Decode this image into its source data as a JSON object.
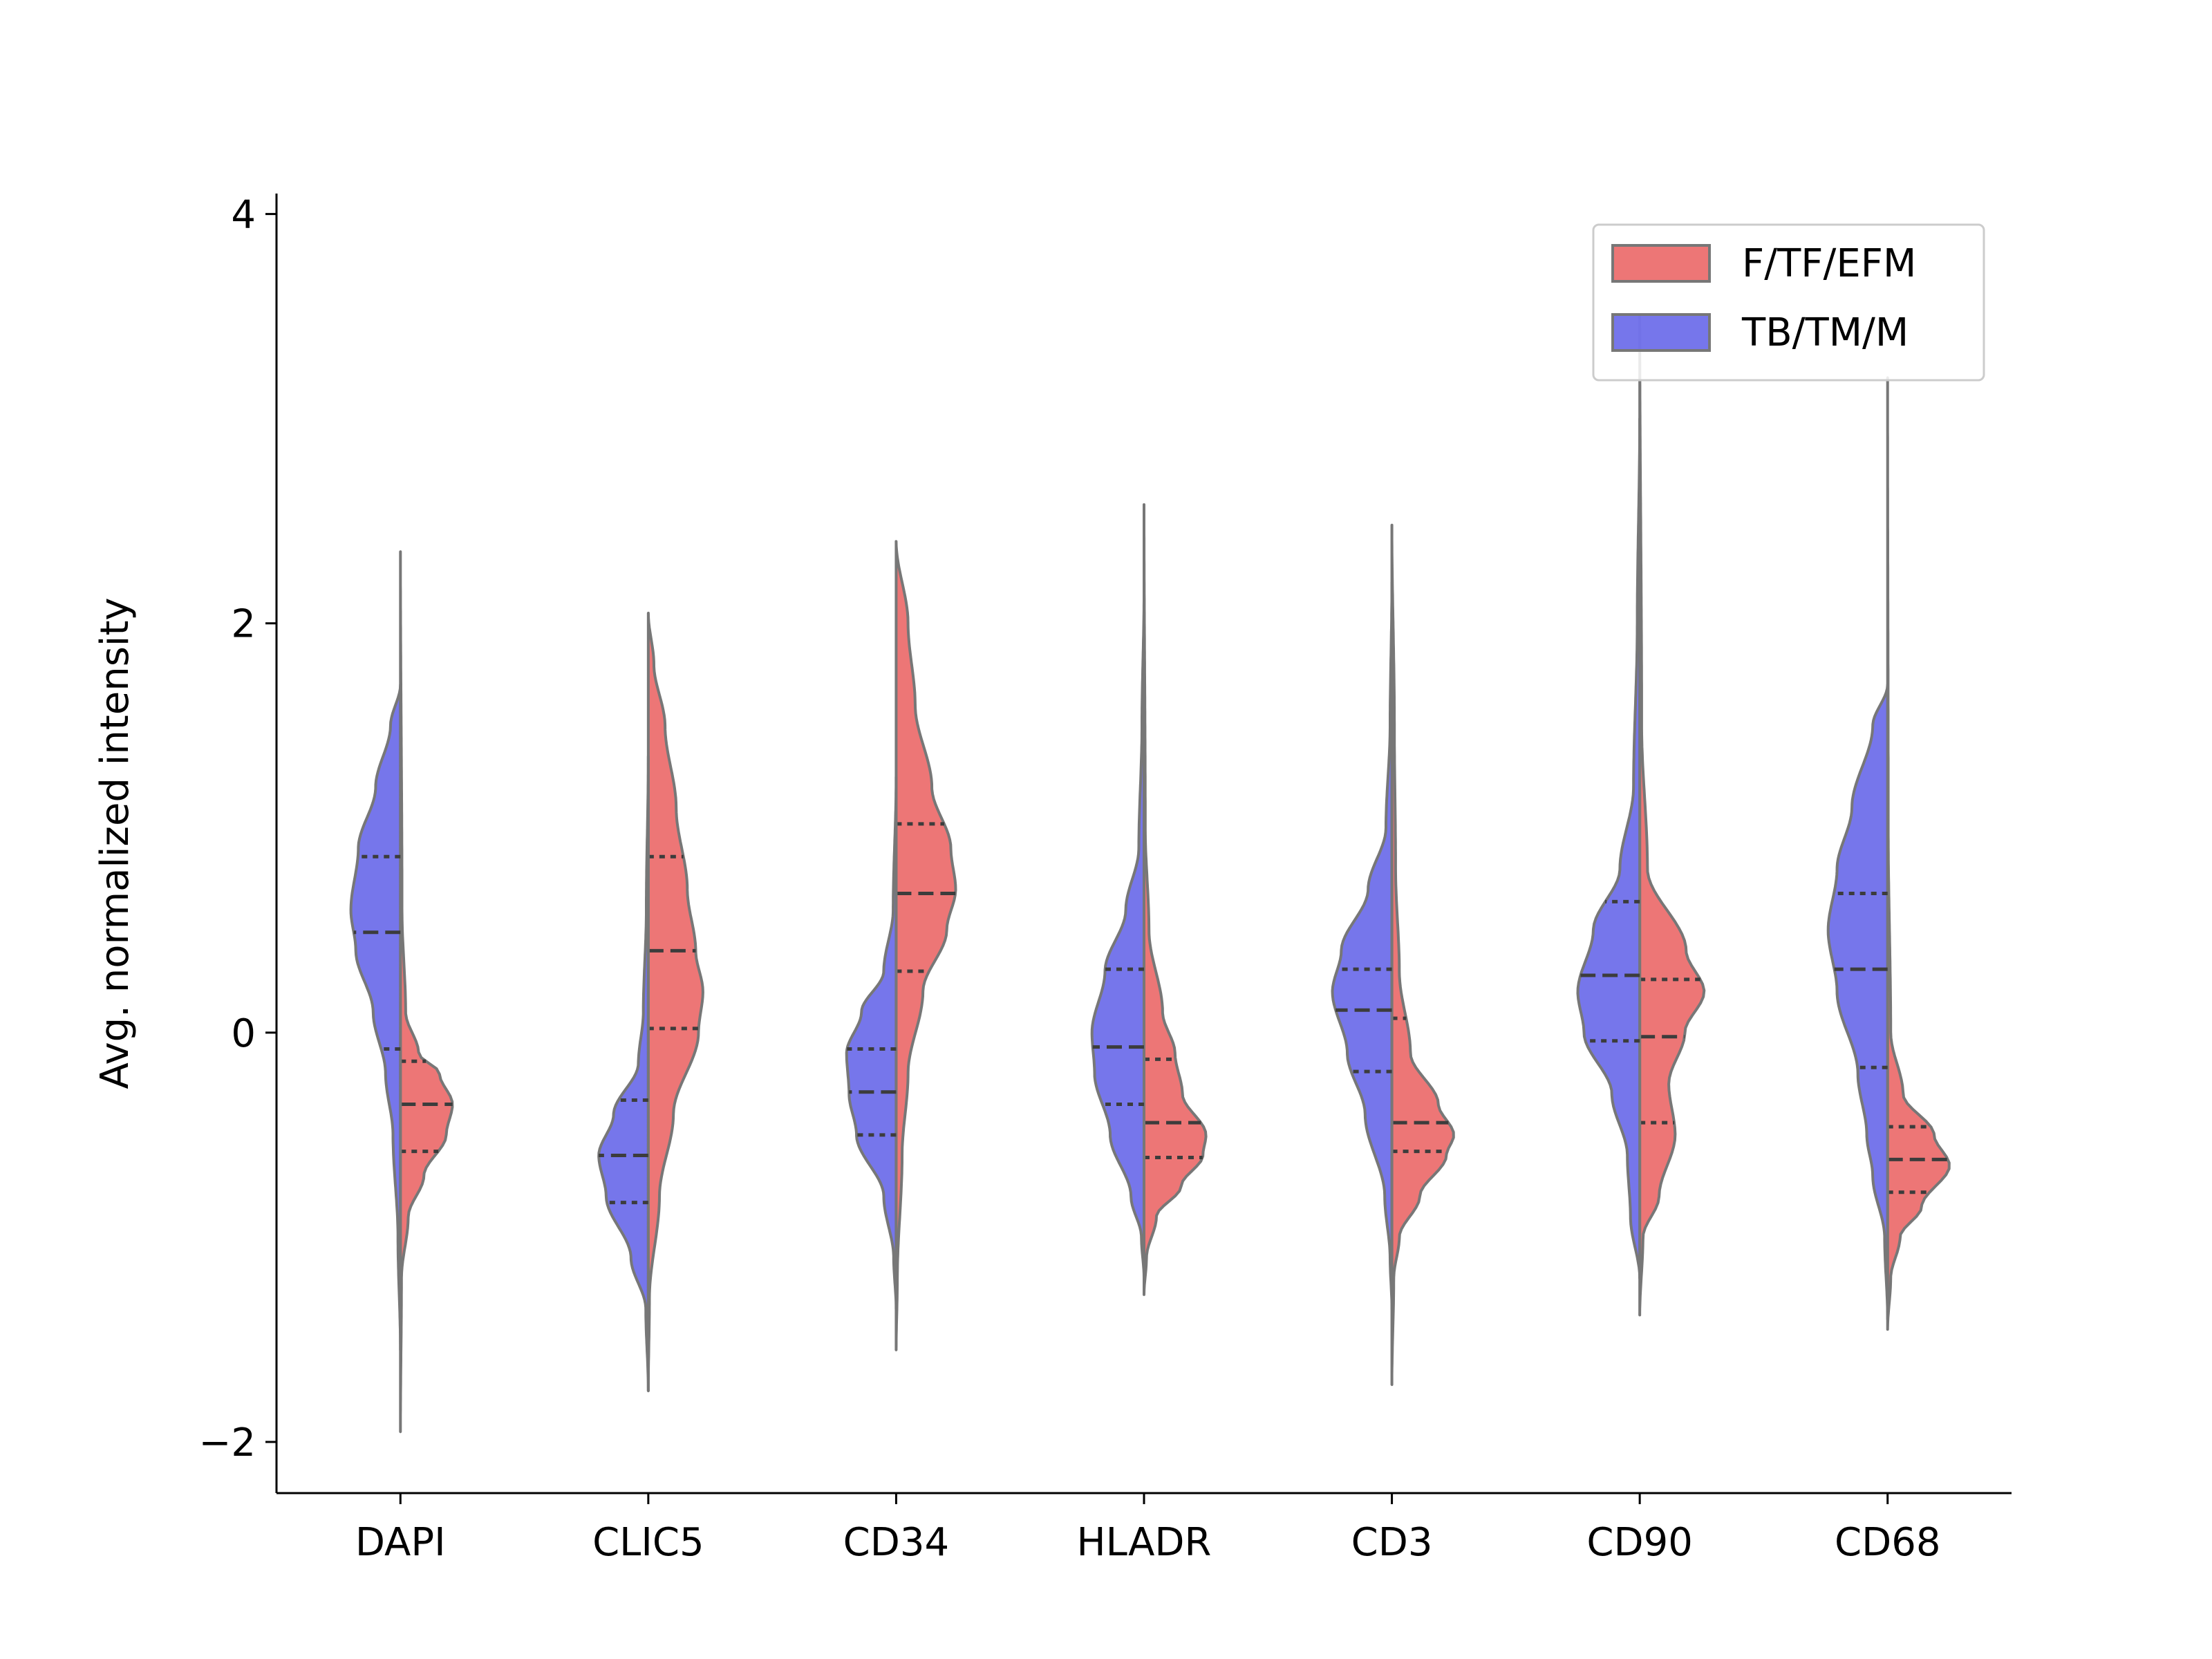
{
  "chart_data": {
    "type": "violin",
    "title": "",
    "xlabel": "",
    "ylabel": "Avg. normalized intensity",
    "ylim": [
      -2.25,
      4.1
    ],
    "yticks": [
      -2,
      0,
      2,
      4
    ],
    "ytick_labels": [
      "−2",
      "0",
      "2",
      "4"
    ],
    "categories": [
      "DAPI",
      "CLIC5",
      "CD34",
      "HLADR",
      "CD3",
      "CD90",
      "CD68"
    ],
    "split": true,
    "inner": "quartile",
    "legend": {
      "position": "top-right"
    },
    "series": [
      {
        "name": "F/TF/EFM",
        "side": "right",
        "color": "#e85050",
        "violins": [
          {
            "range": [
              -1.95,
              2.35
            ],
            "mode": -0.35,
            "width": 0.42,
            "q1": -0.58,
            "median": -0.35,
            "q3": -0.14,
            "profile": [
              [
                -1.95,
                0.0
              ],
              [
                -1.2,
                0.02
              ],
              [
                -0.9,
                0.15
              ],
              [
                -0.7,
                0.45
              ],
              [
                -0.5,
                0.88
              ],
              [
                -0.35,
                1.0
              ],
              [
                -0.2,
                0.75
              ],
              [
                -0.1,
                0.35
              ],
              [
                0.1,
                0.1
              ],
              [
                0.6,
                0.03
              ],
              [
                2.35,
                0.0
              ]
            ]
          },
          {
            "range": [
              -1.75,
              2.05
            ],
            "mode": 0.1,
            "width": 0.45,
            "q1": 0.02,
            "median": 0.4,
            "q3": 0.86,
            "profile": [
              [
                -1.75,
                0.0
              ],
              [
                -1.3,
                0.02
              ],
              [
                -0.8,
                0.2
              ],
              [
                -0.4,
                0.45
              ],
              [
                0.0,
                0.9
              ],
              [
                0.2,
                0.98
              ],
              [
                0.4,
                0.85
              ],
              [
                0.7,
                0.7
              ],
              [
                1.1,
                0.5
              ],
              [
                1.5,
                0.3
              ],
              [
                1.8,
                0.1
              ],
              [
                2.05,
                0.0
              ]
            ]
          },
          {
            "range": [
              -1.55,
              2.4
            ],
            "mode": 0.7,
            "width": 0.48,
            "q1": 0.3,
            "median": 0.68,
            "q3": 1.02,
            "profile": [
              [
                -1.55,
                0.0
              ],
              [
                -1.2,
                0.02
              ],
              [
                -0.6,
                0.1
              ],
              [
                -0.2,
                0.2
              ],
              [
                0.2,
                0.45
              ],
              [
                0.5,
                0.85
              ],
              [
                0.7,
                1.0
              ],
              [
                0.9,
                0.92
              ],
              [
                1.2,
                0.6
              ],
              [
                1.6,
                0.32
              ],
              [
                2.0,
                0.2
              ],
              [
                2.4,
                0.0
              ]
            ]
          },
          {
            "range": [
              -1.28,
              2.58
            ],
            "mode": -0.55,
            "width": 0.5,
            "q1": -0.61,
            "median": -0.44,
            "q3": -0.13,
            "profile": [
              [
                -1.28,
                0.0
              ],
              [
                -1.1,
                0.04
              ],
              [
                -0.9,
                0.2
              ],
              [
                -0.75,
                0.6
              ],
              [
                -0.6,
                0.95
              ],
              [
                -0.5,
                1.0
              ],
              [
                -0.3,
                0.62
              ],
              [
                -0.1,
                0.5
              ],
              [
                0.1,
                0.3
              ],
              [
                0.5,
                0.08
              ],
              [
                1.0,
                0.02
              ],
              [
                2.58,
                0.0
              ]
            ]
          },
          {
            "range": [
              -1.72,
              2.48
            ],
            "mode": -0.5,
            "width": 0.5,
            "q1": -0.58,
            "median": -0.44,
            "q3": 0.07,
            "profile": [
              [
                -1.72,
                0.0
              ],
              [
                -1.2,
                0.03
              ],
              [
                -1.0,
                0.12
              ],
              [
                -0.8,
                0.45
              ],
              [
                -0.6,
                0.88
              ],
              [
                -0.5,
                1.0
              ],
              [
                -0.35,
                0.75
              ],
              [
                -0.1,
                0.3
              ],
              [
                0.3,
                0.12
              ],
              [
                0.8,
                0.06
              ],
              [
                1.5,
                0.04
              ],
              [
                2.48,
                0.0
              ]
            ]
          },
          {
            "range": [
              -1.38,
              3.5
            ],
            "mode": 0.2,
            "width": 0.52,
            "q1": -0.44,
            "median": -0.02,
            "q3": 0.26,
            "profile": [
              [
                -1.38,
                0.0
              ],
              [
                -1.0,
                0.05
              ],
              [
                -0.8,
                0.3
              ],
              [
                -0.5,
                0.55
              ],
              [
                -0.25,
                0.45
              ],
              [
                0.0,
                0.7
              ],
              [
                0.2,
                1.0
              ],
              [
                0.4,
                0.72
              ],
              [
                0.8,
                0.12
              ],
              [
                1.5,
                0.03
              ],
              [
                3.5,
                0.0
              ]
            ]
          },
          {
            "range": [
              -1.45,
              3.2
            ],
            "mode": -0.65,
            "width": 0.5,
            "q1": -0.78,
            "median": -0.62,
            "q3": -0.46,
            "profile": [
              [
                -1.45,
                0.0
              ],
              [
                -1.2,
                0.05
              ],
              [
                -1.0,
                0.2
              ],
              [
                -0.85,
                0.55
              ],
              [
                -0.65,
                1.0
              ],
              [
                -0.5,
                0.75
              ],
              [
                -0.3,
                0.25
              ],
              [
                0.0,
                0.05
              ],
              [
                1.0,
                0.01
              ],
              [
                3.2,
                0.0
              ]
            ]
          }
        ]
      },
      {
        "name": "TB/TM/M",
        "side": "left",
        "color": "#5050e6",
        "violins": [
          {
            "range": [
              -1.55,
              1.7
            ],
            "mode": 0.6,
            "width": 0.4,
            "q1": -0.08,
            "median": 0.49,
            "q3": 0.86,
            "profile": [
              [
                -1.55,
                0.0
              ],
              [
                -1.0,
                0.05
              ],
              [
                -0.5,
                0.15
              ],
              [
                -0.2,
                0.3
              ],
              [
                0.1,
                0.55
              ],
              [
                0.4,
                0.9
              ],
              [
                0.6,
                1.0
              ],
              [
                0.9,
                0.85
              ],
              [
                1.2,
                0.5
              ],
              [
                1.5,
                0.2
              ],
              [
                1.7,
                0.0
              ]
            ]
          },
          {
            "range": [
              -1.75,
              1.35
            ],
            "mode": -0.6,
            "width": 0.4,
            "q1": -0.83,
            "median": -0.6,
            "q3": -0.33,
            "profile": [
              [
                -1.75,
                0.0
              ],
              [
                -1.35,
                0.05
              ],
              [
                -1.1,
                0.35
              ],
              [
                -0.8,
                0.85
              ],
              [
                -0.6,
                1.0
              ],
              [
                -0.4,
                0.7
              ],
              [
                -0.15,
                0.2
              ],
              [
                0.1,
                0.1
              ],
              [
                0.6,
                0.04
              ],
              [
                1.35,
                0.0
              ]
            ]
          },
          {
            "range": [
              -1.35,
              1.25
            ],
            "mode": -0.2,
            "width": 0.4,
            "q1": -0.5,
            "median": -0.29,
            "q3": -0.08,
            "profile": [
              [
                -1.35,
                0.0
              ],
              [
                -1.1,
                0.05
              ],
              [
                -0.8,
                0.25
              ],
              [
                -0.5,
                0.8
              ],
              [
                -0.3,
                0.95
              ],
              [
                -0.1,
                1.0
              ],
              [
                0.1,
                0.7
              ],
              [
                0.3,
                0.25
              ],
              [
                0.6,
                0.06
              ],
              [
                1.25,
                0.0
              ]
            ]
          },
          {
            "range": [
              -1.2,
              2.15
            ],
            "mode": -0.2,
            "width": 0.42,
            "q1": -0.35,
            "median": -0.07,
            "q3": 0.31,
            "profile": [
              [
                -1.2,
                0.0
              ],
              [
                -1.0,
                0.05
              ],
              [
                -0.8,
                0.25
              ],
              [
                -0.5,
                0.65
              ],
              [
                -0.2,
                0.95
              ],
              [
                0.0,
                1.0
              ],
              [
                0.3,
                0.75
              ],
              [
                0.6,
                0.35
              ],
              [
                0.9,
                0.1
              ],
              [
                1.5,
                0.04
              ],
              [
                2.15,
                0.0
              ]
            ]
          },
          {
            "range": [
              -1.35,
              2.2
            ],
            "mode": 0.2,
            "width": 0.48,
            "q1": -0.19,
            "median": 0.11,
            "q3": 0.31,
            "profile": [
              [
                -1.35,
                0.0
              ],
              [
                -1.1,
                0.03
              ],
              [
                -0.8,
                0.12
              ],
              [
                -0.4,
                0.45
              ],
              [
                -0.1,
                0.75
              ],
              [
                0.2,
                1.0
              ],
              [
                0.4,
                0.85
              ],
              [
                0.7,
                0.4
              ],
              [
                1.0,
                0.1
              ],
              [
                1.5,
                0.03
              ],
              [
                2.2,
                0.0
              ]
            ]
          },
          {
            "range": [
              -1.2,
              3.0
            ],
            "mode": 0.2,
            "width": 0.5,
            "q1": -0.04,
            "median": 0.28,
            "q3": 0.64,
            "profile": [
              [
                -1.2,
                0.0
              ],
              [
                -0.9,
                0.15
              ],
              [
                -0.6,
                0.2
              ],
              [
                -0.3,
                0.45
              ],
              [
                0.0,
                0.9
              ],
              [
                0.2,
                1.0
              ],
              [
                0.5,
                0.75
              ],
              [
                0.8,
                0.32
              ],
              [
                1.2,
                0.1
              ],
              [
                2.0,
                0.04
              ],
              [
                3.0,
                0.0
              ]
            ]
          },
          {
            "range": [
              -1.4,
              1.7
            ],
            "mode": 0.5,
            "width": 0.48,
            "q1": -0.17,
            "median": 0.31,
            "q3": 0.68,
            "profile": [
              [
                -1.4,
                0.0
              ],
              [
                -1.0,
                0.05
              ],
              [
                -0.7,
                0.25
              ],
              [
                -0.5,
                0.35
              ],
              [
                -0.2,
                0.5
              ],
              [
                0.2,
                0.85
              ],
              [
                0.5,
                1.0
              ],
              [
                0.8,
                0.85
              ],
              [
                1.1,
                0.6
              ],
              [
                1.5,
                0.25
              ],
              [
                1.7,
                0.0
              ]
            ]
          }
        ]
      }
    ]
  }
}
